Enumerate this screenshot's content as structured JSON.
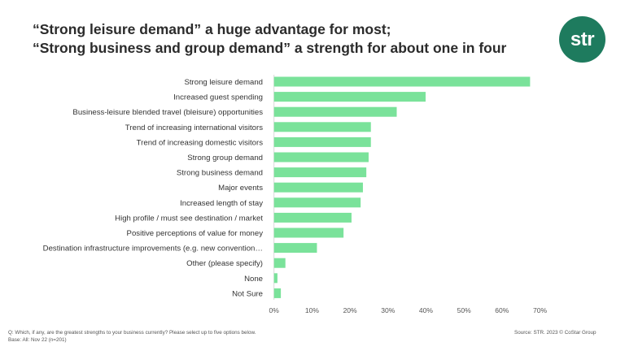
{
  "header": {
    "title_line1": "“Strong leisure demand” a huge advantage for most;",
    "title_line2": "“Strong business and group demand” a strength for about one in four",
    "logo_text": "str"
  },
  "footer": {
    "question": "Q: Which, if any, are the greatest strengths to your business currently? Please select up to five options below.",
    "base": "Base: All: Nov 22 (n=201)",
    "source": "Source: STR. 2023 © CoStar Group"
  },
  "colors": {
    "bar": "#7ae29a",
    "logo": "#1e7b5e"
  },
  "chart_data": {
    "type": "bar",
    "orientation": "horizontal",
    "categories": [
      "Strong leisure demand",
      "Increased guest spending",
      "Business-leisure blended travel (bleisure) opportunities",
      "Trend of increasing international visitors",
      "Trend of increasing domestic visitors",
      "Strong group demand",
      "Strong business demand",
      "Major events",
      "Increased length of stay",
      "High profile / must see destination / market",
      "Positive perceptions of value for money",
      "Destination infrastructure improvements (e.g. new convention…",
      "Other (please specify)",
      "None",
      "Not Sure"
    ],
    "values": [
      67.4,
      39.9,
      32.3,
      25.5,
      25.5,
      24.9,
      24.3,
      23.4,
      22.8,
      20.4,
      18.3,
      11.3,
      3.0,
      0.9,
      1.8
    ],
    "xlim": [
      0,
      70
    ],
    "x_ticks": [
      "0%",
      "10%",
      "20%",
      "30%",
      "40%",
      "50%",
      "60%",
      "70%"
    ],
    "tick_values": [
      0,
      10,
      20,
      30,
      40,
      50,
      60,
      70
    ],
    "grid": false,
    "legend": "none"
  }
}
